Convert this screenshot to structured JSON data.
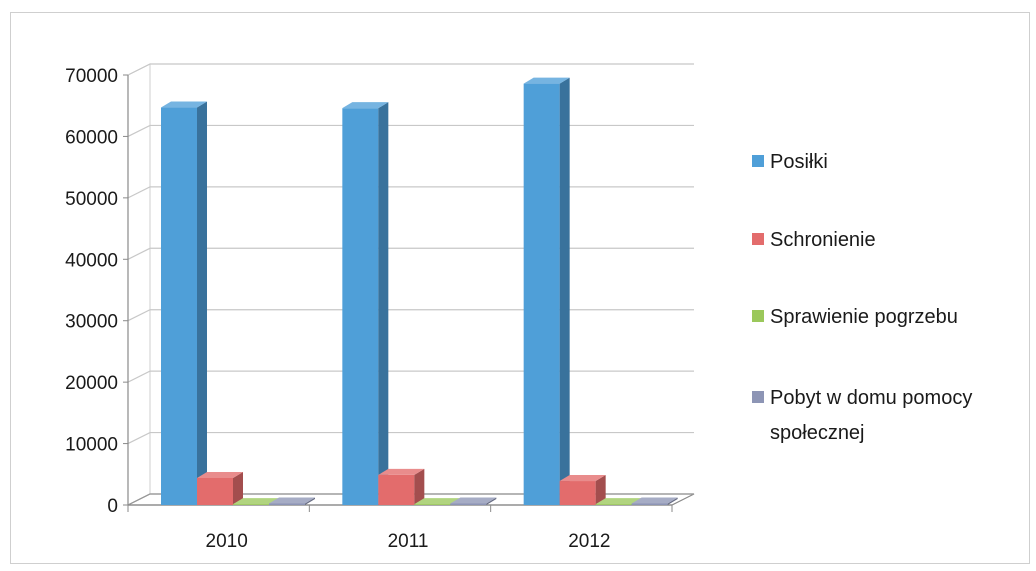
{
  "chart_data": {
    "type": "bar",
    "categories": [
      "2010",
      "2011",
      "2012"
    ],
    "series": [
      {
        "name": "Posiłki",
        "values": [
          64700,
          64600,
          68600
        ],
        "color": "#4f9fd8"
      },
      {
        "name": "Schronienie",
        "values": [
          4400,
          4900,
          3900
        ],
        "color": "#e36c6c"
      },
      {
        "name": "Sprawienie pogrzebu",
        "values": [
          150,
          150,
          150
        ],
        "color": "#9bc85b"
      },
      {
        "name": "Pobyt w domu pomocy społecznej",
        "values": [
          250,
          250,
          250
        ],
        "color": "#8d95b5"
      }
    ],
    "yticks": [
      "0",
      "10000",
      "20000",
      "30000",
      "40000",
      "50000",
      "60000",
      "70000"
    ],
    "ylim": [
      0,
      70000
    ],
    "grid": true,
    "legend_position": "right",
    "legend_lines": [
      [
        "Posiłki"
      ],
      [
        "Schronienie"
      ],
      [
        "Sprawienie pogrzebu"
      ],
      [
        "Pobyt w domu pomocy",
        "społecznej"
      ]
    ]
  }
}
